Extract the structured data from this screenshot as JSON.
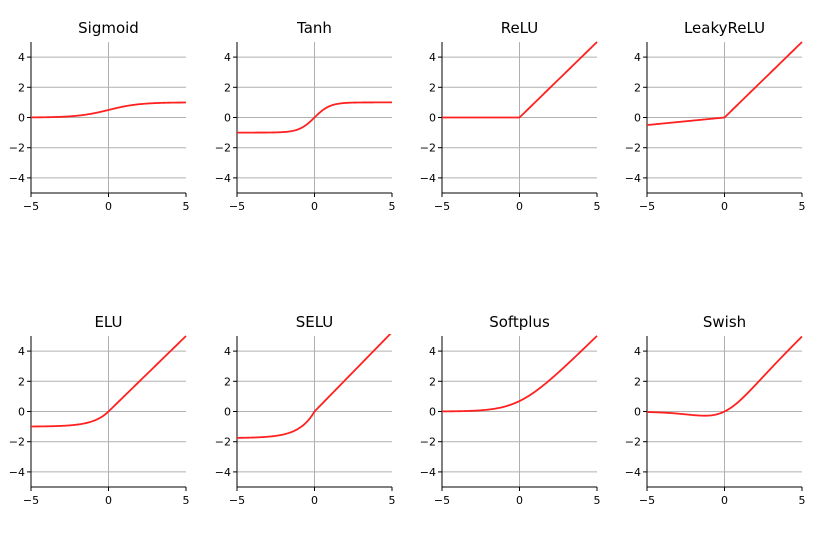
{
  "colors": {
    "curve": "#ff2020",
    "grid": "#b0b0b0",
    "axis": "#000000"
  },
  "chart_data": [
    {
      "type": "line",
      "title": "Sigmoid",
      "function": "sigmoid",
      "xlim": [
        -5,
        5
      ],
      "ylim": [
        -5,
        5
      ],
      "xticks": [
        "−5",
        "0",
        "5"
      ],
      "yticks": [
        "4",
        "2",
        "0",
        "−2",
        "−4"
      ],
      "grid": true,
      "series": [
        {
          "x": [
            -5,
            -4,
            -3,
            -2,
            -1,
            0,
            1,
            2,
            3,
            4,
            5
          ],
          "y": [
            0.007,
            0.018,
            0.047,
            0.119,
            0.269,
            0.5,
            0.731,
            0.881,
            0.953,
            0.982,
            0.993
          ]
        }
      ]
    },
    {
      "type": "line",
      "title": "Tanh",
      "function": "tanh",
      "xlim": [
        -5,
        5
      ],
      "ylim": [
        -5,
        5
      ],
      "xticks": [
        "−5",
        "0",
        "5"
      ],
      "yticks": [
        "4",
        "2",
        "0",
        "−2",
        "−4"
      ],
      "grid": true,
      "series": [
        {
          "x": [
            -5,
            -4,
            -3,
            -2,
            -1,
            0,
            1,
            2,
            3,
            4,
            5
          ],
          "y": [
            -1.0,
            -0.999,
            -0.995,
            -0.964,
            -0.762,
            0,
            0.762,
            0.964,
            0.995,
            0.999,
            1.0
          ]
        }
      ]
    },
    {
      "type": "line",
      "title": "ReLU",
      "function": "relu",
      "xlim": [
        -5,
        5
      ],
      "ylim": [
        -5,
        5
      ],
      "xticks": [
        "−5",
        "0",
        "5"
      ],
      "yticks": [
        "4",
        "2",
        "0",
        "−2",
        "−4"
      ],
      "grid": true,
      "series": [
        {
          "x": [
            -5,
            -4,
            -3,
            -2,
            -1,
            0,
            1,
            2,
            3,
            4,
            5
          ],
          "y": [
            0,
            0,
            0,
            0,
            0,
            0,
            1,
            2,
            3,
            4,
            5
          ]
        }
      ]
    },
    {
      "type": "line",
      "title": "LeakyReLU",
      "function": "leakyrelu",
      "xlim": [
        -5,
        5
      ],
      "ylim": [
        -5,
        5
      ],
      "xticks": [
        "−5",
        "0",
        "5"
      ],
      "yticks": [
        "4",
        "2",
        "0",
        "−2",
        "−4"
      ],
      "grid": true,
      "series": [
        {
          "x": [
            -5,
            -4,
            -3,
            -2,
            -1,
            0,
            1,
            2,
            3,
            4,
            5
          ],
          "y": [
            -0.5,
            -0.4,
            -0.3,
            -0.2,
            -0.1,
            0,
            1,
            2,
            3,
            4,
            5
          ]
        }
      ]
    },
    {
      "type": "line",
      "title": "ELU",
      "function": "elu",
      "xlim": [
        -5,
        5
      ],
      "ylim": [
        -5,
        5
      ],
      "xticks": [
        "−5",
        "0",
        "5"
      ],
      "yticks": [
        "4",
        "2",
        "0",
        "−2",
        "−4"
      ],
      "grid": true,
      "series": [
        {
          "x": [
            -5,
            -4,
            -3,
            -2,
            -1,
            0,
            1,
            2,
            3,
            4,
            5
          ],
          "y": [
            -0.993,
            -0.982,
            -0.95,
            -0.865,
            -0.632,
            0,
            1,
            2,
            3,
            4,
            5
          ]
        }
      ]
    },
    {
      "type": "line",
      "title": "SELU",
      "function": "selu",
      "xlim": [
        -5,
        5
      ],
      "ylim": [
        -5,
        5
      ],
      "xticks": [
        "−5",
        "0",
        "5"
      ],
      "yticks": [
        "4",
        "2",
        "0",
        "−2",
        "−4"
      ],
      "grid": true,
      "series": [
        {
          "x": [
            -5,
            -4,
            -3,
            -2,
            -1,
            0,
            1,
            2,
            3,
            4,
            5
          ],
          "y": [
            -1.746,
            -1.726,
            -1.67,
            -1.52,
            -1.111,
            0,
            1.051,
            2.101,
            3.152,
            4.203,
            5.254
          ]
        }
      ]
    },
    {
      "type": "line",
      "title": "Softplus",
      "function": "softplus",
      "xlim": [
        -5,
        5
      ],
      "ylim": [
        -5,
        5
      ],
      "xticks": [
        "−5",
        "0",
        "5"
      ],
      "yticks": [
        "4",
        "2",
        "0",
        "−2",
        "−4"
      ],
      "grid": true,
      "series": [
        {
          "x": [
            -5,
            -4,
            -3,
            -2,
            -1,
            0,
            1,
            2,
            3,
            4,
            5
          ],
          "y": [
            0.007,
            0.018,
            0.049,
            0.127,
            0.313,
            0.693,
            1.313,
            2.127,
            3.049,
            4.018,
            5.007
          ]
        }
      ]
    },
    {
      "type": "line",
      "title": "Swish",
      "function": "swish",
      "xlim": [
        -5,
        5
      ],
      "ylim": [
        -5,
        5
      ],
      "xticks": [
        "−5",
        "0",
        "5"
      ],
      "yticks": [
        "4",
        "2",
        "0",
        "−2",
        "−4"
      ],
      "grid": true,
      "series": [
        {
          "x": [
            -5,
            -4,
            -3,
            -2,
            -1,
            0,
            1,
            2,
            3,
            4,
            5
          ],
          "y": [
            -0.033,
            -0.072,
            -0.142,
            -0.238,
            -0.269,
            0,
            0.731,
            1.762,
            2.858,
            3.928,
            4.967
          ]
        }
      ]
    }
  ]
}
